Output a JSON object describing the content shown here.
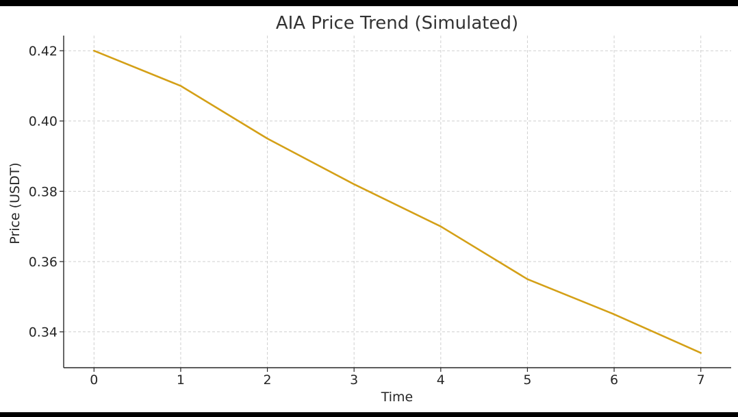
{
  "chart_data": {
    "type": "line",
    "title": "AIA Price Trend (Simulated)",
    "xlabel": "Time",
    "ylabel": "Price (USDT)",
    "x": [
      0,
      1,
      2,
      3,
      4,
      5,
      6,
      7
    ],
    "series": [
      {
        "values": [
          0.42,
          0.41,
          0.395,
          0.382,
          0.37,
          0.355,
          0.345,
          0.334
        ]
      }
    ],
    "xticks": [
      0,
      1,
      2,
      3,
      4,
      5,
      6,
      7
    ],
    "xtick_labels": [
      "0",
      "1",
      "2",
      "3",
      "4",
      "5",
      "6",
      "7"
    ],
    "yticks": [
      0.34,
      0.36,
      0.38,
      0.4,
      0.42
    ],
    "ytick_labels": [
      "0.34",
      "0.36",
      "0.38",
      "0.40",
      "0.42"
    ],
    "xlim": [
      -0.35,
      7.35
    ],
    "ylim": [
      0.3298,
      0.4243
    ],
    "grid": true,
    "line_color": "#D4A017"
  }
}
